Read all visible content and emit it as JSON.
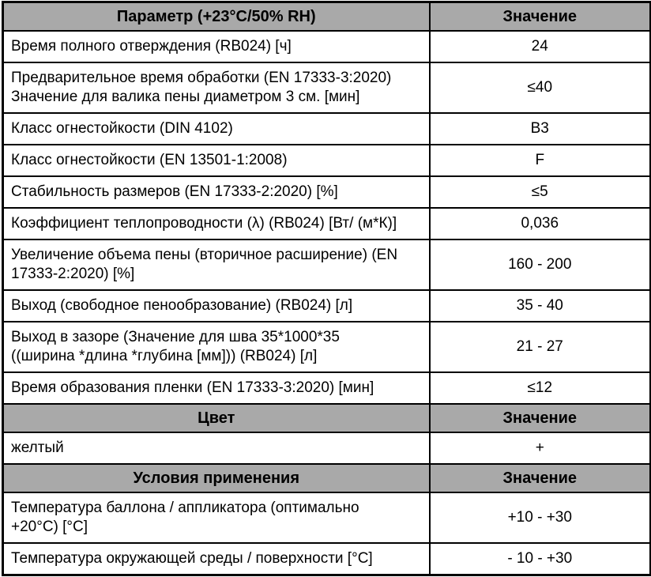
{
  "colors": {
    "header_bg": "#a9a9a9",
    "border": "#000000",
    "row_bg": "#ffffff",
    "text": "#000000"
  },
  "sections": [
    {
      "header": {
        "param": "Параметр (+23°C/50% RH)",
        "value": "Значение"
      },
      "rows": [
        {
          "param": "Время полного отверждения (RB024) [ч]",
          "value": "24"
        },
        {
          "param": "Предварительное время обработки (EN 17333-3:2020)\nЗначение для валика пены диаметром 3 см. [мин]",
          "value": "≤40"
        },
        {
          "param": "Класс огнестойкости (DIN 4102)",
          "value": "B3"
        },
        {
          "param": "Класс огнестойкости (EN 13501-1:2008)",
          "value": "F"
        },
        {
          "param": "Стабильность размеров (EN 17333-2:2020) [%]",
          "value": "≤5"
        },
        {
          "param": "Коэффициент теплопроводности (λ) (RB024) [Вт/ (м*К)]",
          "value": "0,036"
        },
        {
          "param": "Увеличение объема пены (вторичное расширение) (EN\n17333-2:2020) [%]",
          "value": "160 - 200"
        },
        {
          "param": "Выход (свободное пенообразование) (RB024) [л]",
          "value": "35 - 40"
        },
        {
          "param": "Выход в зазоре (Значение для шва 35*1000*35\n((ширина *длина *глубина [мм])) (RB024) [л]",
          "value": "21 - 27"
        },
        {
          "param": "Время образования пленки (EN 17333-3:2020) [мин]",
          "value": "≤12"
        }
      ]
    },
    {
      "header": {
        "param": "Цвет",
        "value": "Значение"
      },
      "rows": [
        {
          "param": "желтый",
          "value": "+"
        }
      ]
    },
    {
      "header": {
        "param": "Условия применения",
        "value": "Значение"
      },
      "rows": [
        {
          "param": "Температура баллона / аппликатора (оптимально\n+20°C) [°C]",
          "value": "+10 - +30"
        },
        {
          "param": "Температура окружающей среды / поверхности [°C]",
          "value": "- 10 - +30"
        }
      ]
    }
  ]
}
